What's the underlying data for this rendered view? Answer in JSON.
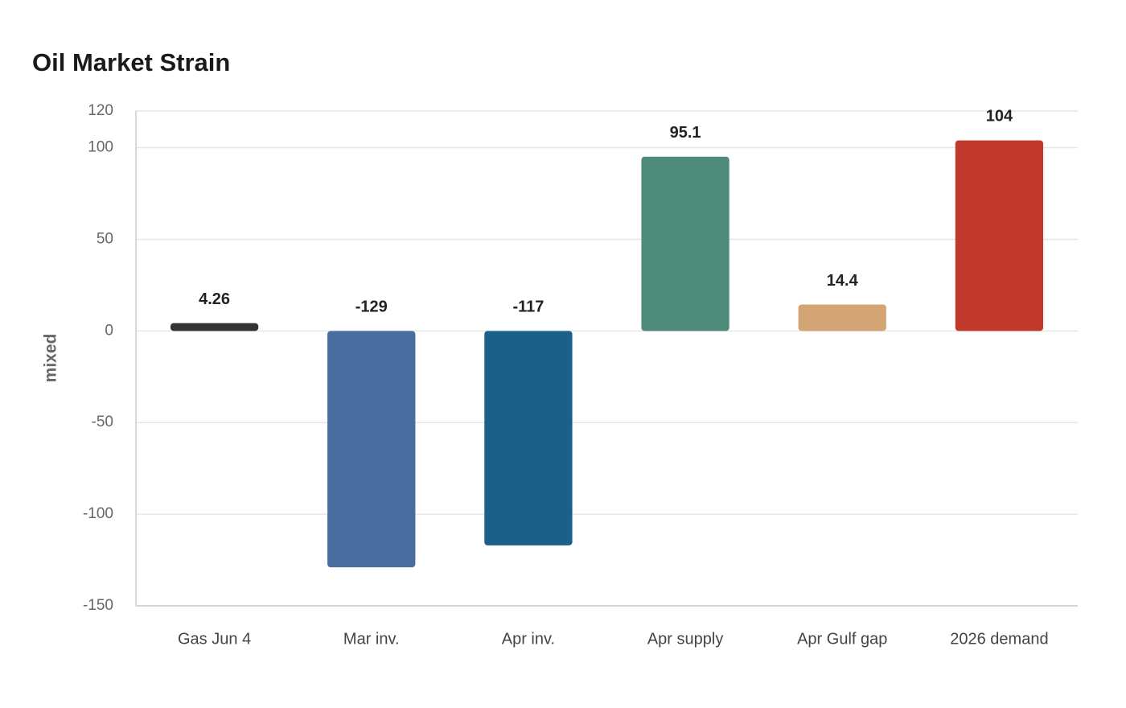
{
  "chart_data": {
    "type": "bar",
    "title": "Oil Market Strain",
    "y_label": "mixed",
    "categories": [
      "Gas Jun 4",
      "Mar inv.",
      "Apr inv.",
      "Apr supply",
      "Apr Gulf gap",
      "2026 demand"
    ],
    "values": [
      4.26,
      -129,
      -117,
      95.1,
      14.4,
      104
    ],
    "colors": [
      "#333333",
      "#4a6da0",
      "#1a6088",
      "#4e8b7a",
      "#d4a574",
      "#c0392b"
    ],
    "ylim": [
      -150,
      120
    ],
    "yticks": [
      -150,
      -100,
      -50,
      0,
      50,
      100,
      120
    ],
    "grid": true
  }
}
